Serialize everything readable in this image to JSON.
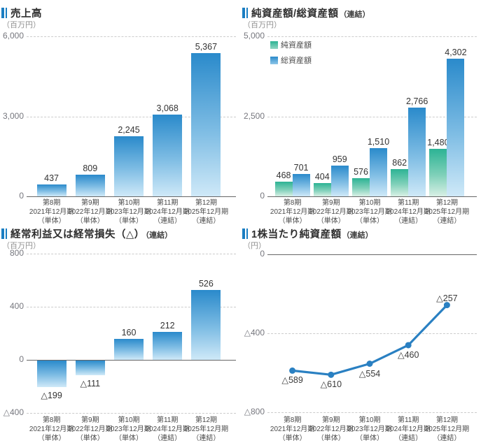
{
  "colors": {
    "accent_bar_icon": "#1b7ec2",
    "bar_blue_top": "#2a8acb",
    "bar_blue_bottom": "#cfe9f8",
    "bar_green_top": "#2cb394",
    "bar_green_bottom": "#d8f0e5",
    "line_blue": "#2a80c2",
    "gridline": "#cccccc",
    "zero_line": "#666666"
  },
  "chart_data": {
    "charts": [
      {
        "id": "sales",
        "type": "bar",
        "title": "売上高",
        "suffix": "",
        "unit": "（百万円）",
        "ylim": [
          0,
          6000
        ],
        "ticks": [
          {
            "value": 6000,
            "label": "6,000",
            "line": "dashed"
          },
          {
            "value": 3000,
            "label": "3,000",
            "line": "dashed"
          },
          {
            "value": 0,
            "label": "0",
            "line": "solid"
          }
        ],
        "categories": [
          [
            "第8期",
            "2021年12月期",
            "（単体）"
          ],
          [
            "第9期",
            "2022年12月期",
            "（単体）"
          ],
          [
            "第10期",
            "2023年12月期",
            "（単体）"
          ],
          [
            "第11期",
            "2024年12月期",
            "（連結）"
          ],
          [
            "第12期",
            "2025年12月期",
            "（連結）"
          ]
        ],
        "values": [
          437,
          809,
          2245,
          3068,
          5367
        ],
        "labels": [
          "437",
          "809",
          "2,245",
          "3,068",
          "5,367"
        ]
      },
      {
        "id": "assets",
        "type": "grouped-bar",
        "title": "純資産額/総資産額",
        "suffix": "（連結）",
        "unit": "（百万円）",
        "ylim": [
          0,
          5000
        ],
        "ticks": [
          {
            "value": 5000,
            "label": "5,000",
            "line": "dashed"
          },
          {
            "value": 2500,
            "label": "2,500",
            "line": "dashed"
          },
          {
            "value": 0,
            "label": "0",
            "line": "solid"
          }
        ],
        "categories": [
          [
            "第8期",
            "2021年12月期",
            "（単体）"
          ],
          [
            "第9期",
            "2022年12月期",
            "（単体）"
          ],
          [
            "第10期",
            "2023年12月期",
            "（単体）"
          ],
          [
            "第11期",
            "2024年12月期",
            "（連結）"
          ],
          [
            "第12期",
            "2025年12月期",
            "（連結）"
          ]
        ],
        "series": [
          {
            "name": "純資産額",
            "color": "green",
            "values": [
              468,
              404,
              576,
              862,
              1480
            ],
            "labels": [
              "468",
              "404",
              "576",
              "862",
              "1,480"
            ]
          },
          {
            "name": "総資産額",
            "color": "blue",
            "values": [
              701,
              959,
              1510,
              2766,
              4302
            ],
            "labels": [
              "701",
              "959",
              "1,510",
              "2,766",
              "4,302"
            ]
          }
        ]
      },
      {
        "id": "ordinary-income",
        "type": "bar",
        "title": "経常利益又は経常損失（△）",
        "suffix": "（連結）",
        "unit": "（百万円）",
        "ylim": [
          -400,
          800
        ],
        "ticks": [
          {
            "value": 800,
            "label": "800",
            "line": "dashed"
          },
          {
            "value": 400,
            "label": "400",
            "line": "dashed"
          },
          {
            "value": 0,
            "label": "0",
            "line": "solid"
          },
          {
            "value": -400,
            "label": "△400",
            "line": "dashed"
          }
        ],
        "categories": [
          [
            "第8期",
            "2021年12月期",
            "（単体）"
          ],
          [
            "第9期",
            "2022年12月期",
            "（単体）"
          ],
          [
            "第10期",
            "2023年12月期",
            "（単体）"
          ],
          [
            "第11期",
            "2024年12月期",
            "（連結）"
          ],
          [
            "第12期",
            "2025年12月期",
            "（連結）"
          ]
        ],
        "values": [
          -199,
          -111,
          160,
          212,
          526
        ],
        "labels": [
          "△199",
          "△111",
          "160",
          "212",
          "526"
        ]
      },
      {
        "id": "net-assets-per-share",
        "type": "line",
        "title": "1株当たり純資産額",
        "suffix": "（連結）",
        "unit": "（円）",
        "ylim": [
          -800,
          0
        ],
        "ticks": [
          {
            "value": 0,
            "label": "0",
            "line": "solid"
          },
          {
            "value": -400,
            "label": "△400",
            "line": "dashed"
          },
          {
            "value": -800,
            "label": "△800",
            "line": "dashed"
          }
        ],
        "categories": [
          [
            "第8期",
            "2021年12月期",
            "（単体）"
          ],
          [
            "第9期",
            "2022年12月期",
            "（単体）"
          ],
          [
            "第10期",
            "2023年12月期",
            "（単体）"
          ],
          [
            "第11期",
            "2024年12月期",
            "（連結）"
          ],
          [
            "第12期",
            "2025年12月期",
            "（連結）"
          ]
        ],
        "values": [
          -589,
          -610,
          -554,
          -460,
          -257
        ],
        "labels": [
          "△589",
          "△610",
          "△554",
          "△460",
          "△257"
        ]
      }
    ]
  }
}
